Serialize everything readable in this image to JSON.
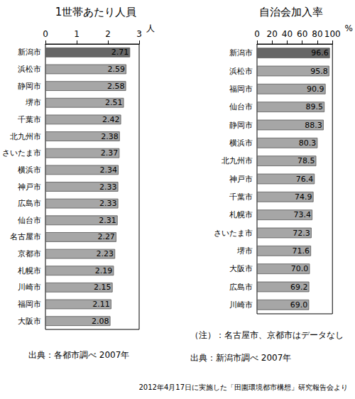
{
  "chart_data": [
    {
      "type": "bar",
      "title": "1世帯あたり人員",
      "x_label": "人",
      "orientation": "horizontal",
      "data_labels": true,
      "grid": false,
      "categories": [
        "新潟市",
        "浜松市",
        "静岡市",
        "堺市",
        "千葉市",
        "北九州市",
        "さいたま市",
        "横浜市",
        "神戸市",
        "広島市",
        "仙台市",
        "名古屋市",
        "京都市",
        "札幌市",
        "川崎市",
        "福岡市",
        "大阪市"
      ],
      "values": [
        2.71,
        2.59,
        2.58,
        2.51,
        2.42,
        2.38,
        2.37,
        2.34,
        2.33,
        2.33,
        2.31,
        2.27,
        2.23,
        2.19,
        2.15,
        2.11,
        2.08
      ],
      "colors": [
        "#666666",
        "#a6a6a6",
        "#a6a6a6",
        "#a6a6a6",
        "#a6a6a6",
        "#a6a6a6",
        "#a6a6a6",
        "#a6a6a6",
        "#a6a6a6",
        "#a6a6a6",
        "#a6a6a6",
        "#a6a6a6",
        "#a6a6a6",
        "#a6a6a6",
        "#a6a6a6",
        "#a6a6a6",
        "#a6a6a6"
      ],
      "xlim": [
        0,
        3
      ],
      "xticks": [
        0,
        1,
        2,
        3
      ],
      "annotations": [
        "出典：各都市調べ 2007年"
      ]
    },
    {
      "type": "bar",
      "title": "自治会加入率",
      "x_label": "%",
      "orientation": "horizontal",
      "data_labels": true,
      "grid": false,
      "categories": [
        "新潟市",
        "浜松市",
        "福岡市",
        "仙台市",
        "静岡市",
        "横浜市",
        "北九州市",
        "神戸市",
        "千葉市",
        "札幌市",
        "さいたま市",
        "堺市",
        "大阪市",
        "広島市",
        "川崎市"
      ],
      "values": [
        96.6,
        95.8,
        90.9,
        89.5,
        88.3,
        80.3,
        78.5,
        76.4,
        74.9,
        73.4,
        72.3,
        71.6,
        70.0,
        69.2,
        69.0
      ],
      "value_labels": [
        "96.6",
        "95.8",
        "90.9",
        "89.5",
        "88.3",
        "80.3",
        "78.5",
        "76.4",
        "74.9",
        "73.4",
        "72.3",
        "71.6",
        "70.0",
        "69.2",
        "69.0"
      ],
      "colors": [
        "#666666",
        "#a6a6a6",
        "#a6a6a6",
        "#a6a6a6",
        "#a6a6a6",
        "#a6a6a6",
        "#a6a6a6",
        "#a6a6a6",
        "#a6a6a6",
        "#a6a6a6",
        "#a6a6a6",
        "#a6a6a6",
        "#a6a6a6",
        "#a6a6a6",
        "#a6a6a6"
      ],
      "xlim": [
        0,
        100
      ],
      "xticks": [
        0,
        20,
        40,
        60,
        80,
        100
      ],
      "annotations": [
        "（注）：名古屋市、京都市はデータなし",
        "出典：新潟市調べ 2007年"
      ]
    }
  ],
  "footer": "2012年4月17日に実施した「田園環境都市構想」研究報告会より"
}
